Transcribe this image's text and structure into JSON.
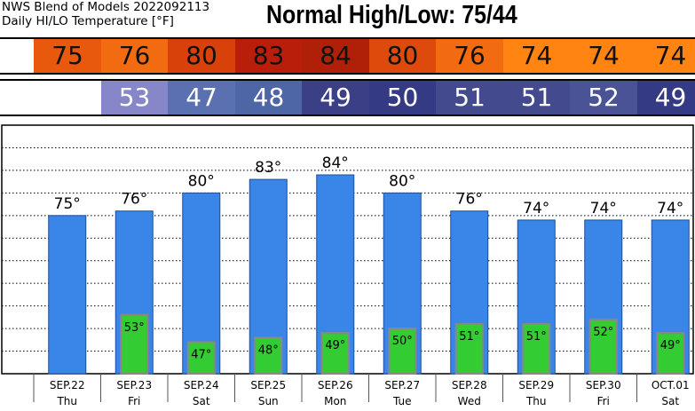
{
  "header": {
    "title_line1": "NWS Blend of Models 2022092113",
    "title_line2": "Daily HI/LO Temperature [°F]",
    "normal_label": "Normal High/Low:  75/44"
  },
  "strips": {
    "highs": [
      "75",
      "76",
      "80",
      "83",
      "84",
      "80",
      "76",
      "74",
      "74",
      "74"
    ],
    "lows": [
      "",
      "53",
      "47",
      "48",
      "49",
      "50",
      "51",
      "51",
      "52",
      "49"
    ],
    "high_colors": [
      "#e8580d",
      "#f26b10",
      "#d8420a",
      "#b81e0a",
      "#b02008",
      "#de4a0c",
      "#f26b10",
      "#ff8412",
      "#ff8412",
      "#ff8412"
    ],
    "low_colors": [
      "#ffffff",
      "#8686c8",
      "#5b70b0",
      "#4e66a6",
      "#3a3f86",
      "#353a84",
      "#434a8e",
      "#434a8e",
      "#4a5396",
      "#353a84"
    ]
  },
  "chart_data": {
    "type": "bar",
    "categories": [
      "SEP.22",
      "SEP.23",
      "SEP.24",
      "SEP.25",
      "SEP.26",
      "SEP.27",
      "SEP.28",
      "SEP.29",
      "SEP.30",
      "OCT.01"
    ],
    "weekdays": [
      "Thu",
      "Fri",
      "Sat",
      "Sun",
      "Mon",
      "Tue",
      "Wed",
      "Thu",
      "Fri",
      "Sat"
    ],
    "series": [
      {
        "values": [
          75,
          76,
          80,
          83,
          84,
          80,
          76,
          74,
          74,
          74
        ],
        "color": "#3a86e8"
      },
      {
        "values": [
          null,
          53,
          47,
          48,
          49,
          50,
          51,
          51,
          52,
          49
        ],
        "color": "#33cc33"
      }
    ],
    "high_labels": [
      "75°",
      "76°",
      "80°",
      "83°",
      "84°",
      "80°",
      "76°",
      "74°",
      "74°",
      "74°"
    ],
    "low_labels": [
      "",
      "53°",
      "47°",
      "48°",
      "49°",
      "50°",
      "51°",
      "51°",
      "52°",
      "49°"
    ],
    "ylim": [
      40,
      95
    ],
    "grid": true,
    "legend": "none"
  }
}
